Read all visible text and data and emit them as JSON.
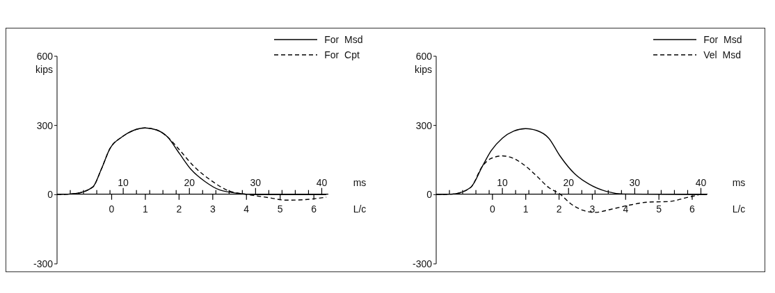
{
  "chart_data": [
    {
      "type": "line",
      "xlabel": "ms",
      "x2label": "L/c",
      "ylabel": "kips",
      "xlim": [
        0,
        41
      ],
      "xticks": [
        {
          "value": 2,
          "label": null
        },
        {
          "value": 4,
          "label": null
        },
        {
          "value": 6,
          "label": null
        },
        {
          "value": 8,
          "label": null
        },
        10,
        {
          "value": 12,
          "label": null
        },
        {
          "value": 14,
          "label": null
        },
        {
          "value": 16,
          "label": null
        },
        {
          "value": 18,
          "label": null
        },
        20,
        {
          "value": 22,
          "label": null
        },
        {
          "value": 24,
          "label": null
        },
        {
          "value": 26,
          "label": null
        },
        {
          "value": 28,
          "label": null
        },
        30,
        {
          "value": 32,
          "label": null
        },
        {
          "value": 34,
          "label": null
        },
        {
          "value": 36,
          "label": null
        },
        {
          "value": 38,
          "label": null
        },
        40
      ],
      "x2lim": [
        -1.62,
        6.43
      ],
      "x2ticks": [
        0,
        1,
        2,
        3,
        4,
        5,
        6
      ],
      "ylim": [
        -300,
        600
      ],
      "yticks": [
        -300,
        0,
        300,
        600
      ],
      "legend": "top right",
      "marker": "none",
      "series": [
        {
          "name": "For  Msd",
          "color": "#000000",
          "line_style": "solid",
          "x": [
            0,
            2.8,
            5.4,
            6.7,
            8.0,
            9.8,
            11.5,
            13.3,
            15.0,
            16.7,
            18.5,
            20.2,
            22.4,
            24.6,
            27.6,
            30.2,
            40.7
          ],
          "values": [
            0,
            5,
            33,
            111,
            200,
            250,
            278,
            289,
            281,
            250,
            178,
            111,
            56,
            20,
            5,
            0,
            0
          ]
        },
        {
          "name": "For  Cpt",
          "color": "#000000",
          "line_style": "dashed",
          "x": [
            0,
            2.8,
            5.4,
            6.7,
            8.0,
            9.8,
            11.5,
            13.3,
            15.0,
            16.7,
            18.5,
            20.7,
            23.3,
            25.9,
            28.9,
            32.0,
            34.6,
            37.2,
            40.7
          ],
          "values": [
            0,
            5,
            33,
            111,
            200,
            250,
            278,
            289,
            281,
            250,
            194,
            122,
            61,
            17,
            0,
            -13,
            -24,
            -22,
            -11
          ]
        }
      ]
    },
    {
      "type": "line",
      "xlabel": "ms",
      "x2label": "L/c",
      "ylabel": "kips",
      "xlim": [
        0,
        41
      ],
      "xticks": [
        {
          "value": 2,
          "label": null
        },
        {
          "value": 4,
          "label": null
        },
        {
          "value": 6,
          "label": null
        },
        {
          "value": 8,
          "label": null
        },
        10,
        {
          "value": 12,
          "label": null
        },
        {
          "value": 14,
          "label": null
        },
        {
          "value": 16,
          "label": null
        },
        {
          "value": 18,
          "label": null
        },
        20,
        {
          "value": 22,
          "label": null
        },
        {
          "value": 24,
          "label": null
        },
        {
          "value": 26,
          "label": null
        },
        {
          "value": 28,
          "label": null
        },
        30,
        {
          "value": 32,
          "label": null
        },
        {
          "value": 34,
          "label": null
        },
        {
          "value": 36,
          "label": null
        },
        {
          "value": 38,
          "label": null
        },
        40
      ],
      "x2lim": [
        -1.69,
        6.46
      ],
      "x2ticks": [
        0,
        1,
        2,
        3,
        4,
        5,
        6
      ],
      "ylim": [
        -300,
        600
      ],
      "yticks": [
        -300,
        0,
        300,
        600
      ],
      "legend": "top right",
      "marker": "none",
      "series": [
        {
          "name": "For  Msd",
          "color": "#000000",
          "line_style": "solid",
          "x": [
            0,
            2.6,
            5.2,
            7.0,
            8.3,
            10.0,
            11.7,
            13.5,
            15.2,
            17.0,
            18.7,
            20.9,
            23.0,
            25.7,
            28.3,
            40.9
          ],
          "values": [
            0,
            3,
            31,
            124,
            190,
            245,
            275,
            286,
            278,
            245,
            168,
            91,
            47,
            14,
            3,
            0
          ]
        },
        {
          "name": "Vel  Msd",
          "color": "#000000",
          "line_style": "dashed",
          "x": [
            0,
            2.6,
            5.2,
            7.0,
            8.3,
            10.0,
            11.7,
            13.5,
            15.2,
            17.0,
            18.7,
            20.4,
            22.2,
            23.9,
            26.5,
            29.1,
            32.2,
            35.2,
            37.8,
            39.6
          ],
          "values": [
            0,
            3,
            31,
            124,
            157,
            168,
            157,
            124,
            80,
            31,
            3,
            -41,
            -68,
            -77,
            -63,
            -46,
            -32,
            -30,
            -13,
            -2
          ]
        }
      ]
    }
  ]
}
